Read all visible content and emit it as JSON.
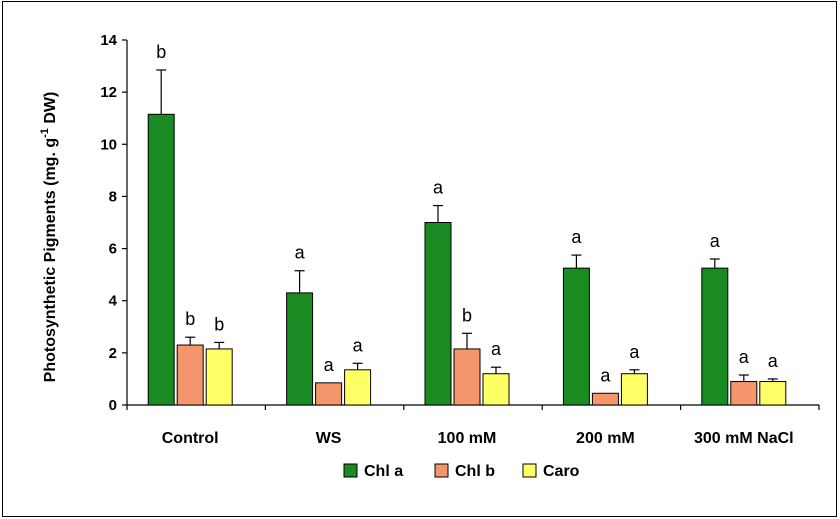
{
  "chart_data": {
    "type": "bar",
    "categories": [
      "Control",
      "WS",
      "100 mM",
      "200 mM",
      "300 mM NaCl"
    ],
    "ylabel": {
      "main": "Photosynthetic Pigments  (mg. g",
      "sup": "-1",
      "tail": " DW)"
    },
    "ylim": [
      0,
      14
    ],
    "yticks": [
      0,
      2,
      4,
      6,
      8,
      10,
      12,
      14
    ],
    "grid": false,
    "legend_position": "bottom",
    "series": [
      {
        "name": "Chl a",
        "color": "#1a8a22",
        "values": [
          11.15,
          4.3,
          7.0,
          5.25,
          5.25
        ],
        "errors": [
          1.7,
          0.85,
          0.65,
          0.5,
          0.35
        ],
        "letters": [
          "b",
          "a",
          "a",
          "a",
          "a"
        ]
      },
      {
        "name": "Chl b",
        "color": "#f4956b",
        "values": [
          2.3,
          0.85,
          2.15,
          0.45,
          0.9
        ],
        "errors": [
          0.3,
          0.0,
          0.6,
          0.0,
          0.25
        ],
        "letters": [
          "b",
          "a",
          "b",
          "a",
          "a"
        ]
      },
      {
        "name": "Caro",
        "color": "#ffff66",
        "values": [
          2.15,
          1.35,
          1.2,
          1.2,
          0.9
        ],
        "errors": [
          0.25,
          0.25,
          0.25,
          0.15,
          0.1
        ],
        "letters": [
          "b",
          "a",
          "a",
          "a",
          "a"
        ]
      }
    ]
  }
}
